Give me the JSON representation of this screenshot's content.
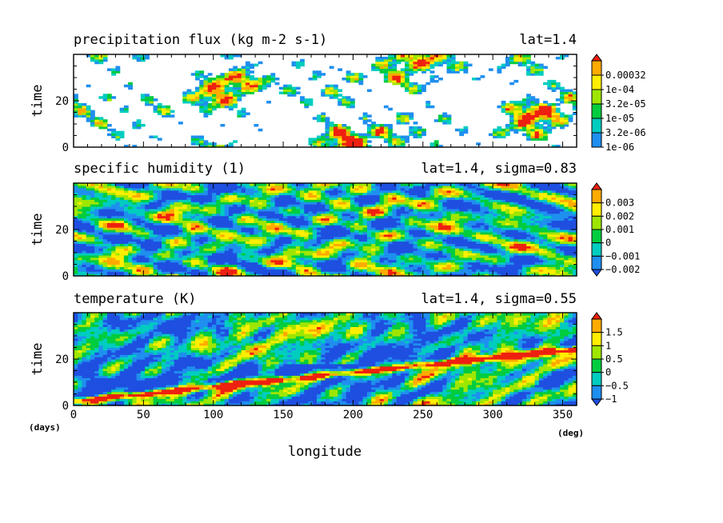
{
  "chart_data": [
    {
      "type": "heatmap",
      "title": "precipitation flux (kg m-2 s-1)",
      "subtitle": "lat=1.4",
      "ylabel": "time",
      "xlim": [
        0,
        360
      ],
      "ylim": [
        0,
        40
      ],
      "yticks": [
        0,
        20
      ],
      "colorbar": {
        "labels": [
          "0.00032",
          "1e-04",
          "3.2e-05",
          "1e-05",
          "3.2e-06",
          "1e-06"
        ],
        "colors": [
          "#1f8fef",
          "#00ccc0",
          "#00cc3f",
          "#9ee600",
          "#ffee00",
          "#ffab00",
          "#ee2010"
        ]
      },
      "field": {
        "kind": "precip",
        "seed": 11
      }
    },
    {
      "type": "heatmap",
      "title": "specific humidity (1)",
      "subtitle": "lat=1.4, sigma=0.83",
      "ylabel": "time",
      "xlim": [
        0,
        360
      ],
      "ylim": [
        0,
        40
      ],
      "yticks": [
        0,
        20
      ],
      "colorbar": {
        "labels": [
          "0.003",
          "0.002",
          "0.001",
          "0",
          "−0.001",
          "−0.002"
        ],
        "colors": [
          "#1e4fe0",
          "#1f8fef",
          "#00ccc0",
          "#00cc3f",
          "#9ee600",
          "#ffee00",
          "#ffab00",
          "#ee2010"
        ]
      },
      "field": {
        "kind": "humidity",
        "seed": 23
      }
    },
    {
      "type": "heatmap",
      "title": "temperature (K)",
      "subtitle": "lat=1.4, sigma=0.55",
      "ylabel": "time",
      "xlabel": "longitude",
      "x_unit": "(deg)",
      "y_unit": "(days)",
      "xlim": [
        0,
        360
      ],
      "ylim": [
        0,
        40
      ],
      "xticks": [
        0,
        50,
        100,
        150,
        200,
        250,
        300,
        350
      ],
      "yticks": [
        0,
        20
      ],
      "colorbar": {
        "labels": [
          "1.5",
          "1",
          "0.5",
          "0",
          "−0.5",
          "−1"
        ],
        "colors": [
          "#1e4fe0",
          "#1f8fef",
          "#00ccc0",
          "#00cc3f",
          "#9ee600",
          "#ffee00",
          "#ffab00",
          "#ee2010"
        ]
      },
      "field": {
        "kind": "temperature",
        "seed": 37
      }
    }
  ]
}
